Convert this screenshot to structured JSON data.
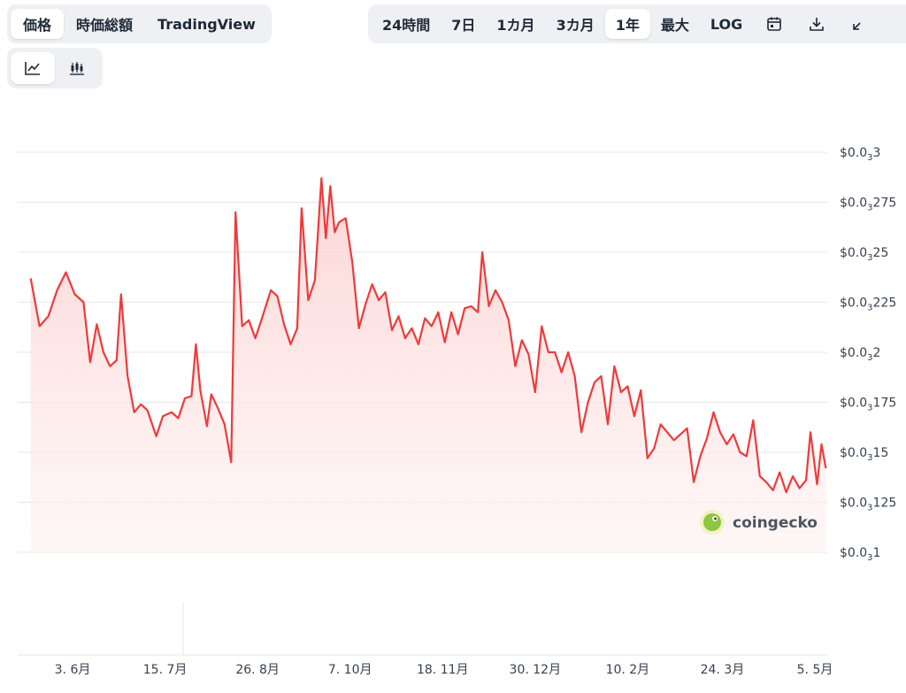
{
  "tabs_left": [
    {
      "label": "価格",
      "active": true
    },
    {
      "label": "時価総額",
      "active": false
    },
    {
      "label": "TradingView",
      "active": false
    }
  ],
  "range_tabs": [
    {
      "label": "24時間",
      "active": false
    },
    {
      "label": "7日",
      "active": false
    },
    {
      "label": "1カ月",
      "active": false
    },
    {
      "label": "3カ月",
      "active": false
    },
    {
      "label": "1年",
      "active": true
    },
    {
      "label": "最大",
      "active": false
    },
    {
      "label": "LOG",
      "active": false
    }
  ],
  "toolbar_icons": [
    "calendar-icon",
    "download-icon",
    "expand-icon"
  ],
  "view_toggle": [
    {
      "icon": "line-chart-icon",
      "active": true
    },
    {
      "icon": "candlestick-icon",
      "active": false
    }
  ],
  "brand": {
    "name": "coingecko",
    "logo": "coingecko-logo-icon"
  },
  "colors": {
    "line": "#ef3a3a",
    "fill_top": "#fcd3d3",
    "grid": "#e5e7eb",
    "text": "#374151"
  },
  "chart_data": {
    "type": "area",
    "title": "",
    "xlabel": "",
    "ylabel": "",
    "ylim": [
      9e-05,
      0.0003
    ],
    "grid": true,
    "y_ticks": [
      {
        "main": "$0.0",
        "sub": "3",
        "tail": "3",
        "value": 0.0003
      },
      {
        "main": "$0.0",
        "sub": "3",
        "tail": "275",
        "value": 0.000275
      },
      {
        "main": "$0.0",
        "sub": "3",
        "tail": "25",
        "value": 0.00025
      },
      {
        "main": "$0.0",
        "sub": "3",
        "tail": "225",
        "value": 0.000225
      },
      {
        "main": "$0.0",
        "sub": "3",
        "tail": "2",
        "value": 0.0002
      },
      {
        "main": "$0.0",
        "sub": "3",
        "tail": "175",
        "value": 0.000175
      },
      {
        "main": "$0.0",
        "sub": "3",
        "tail": "15",
        "value": 0.00015
      },
      {
        "main": "$0.0",
        "sub": "3",
        "tail": "125",
        "value": 0.000125
      },
      {
        "main": "$0.0",
        "sub": "3",
        "tail": "1",
        "value": 0.0001
      }
    ],
    "x_ticks": [
      {
        "label": "3. 6月",
        "date": "2023-06-03"
      },
      {
        "label": "15. 7月",
        "date": "2023-07-15"
      },
      {
        "label": "26. 8月",
        "date": "2023-08-26"
      },
      {
        "label": "7. 10月",
        "date": "2023-10-07"
      },
      {
        "label": "18. 11月",
        "date": "2023-11-18"
      },
      {
        "label": "30. 12月",
        "date": "2023-12-30"
      },
      {
        "label": "10. 2月",
        "date": "2024-02-10"
      },
      {
        "label": "24. 3月",
        "date": "2024-03-24"
      },
      {
        "label": "5. 5月",
        "date": "2024-05-05"
      }
    ],
    "series": [
      {
        "values": [
          [
            "2023-05-15",
            0.000237
          ],
          [
            "2023-05-19",
            0.000213
          ],
          [
            "2023-05-23",
            0.000218
          ],
          [
            "2023-05-27",
            0.000231
          ],
          [
            "2023-05-31",
            0.00024
          ],
          [
            "2023-06-04",
            0.000229
          ],
          [
            "2023-06-08",
            0.000225
          ],
          [
            "2023-06-11",
            0.000195
          ],
          [
            "2023-06-14",
            0.000214
          ],
          [
            "2023-06-17",
            0.0002
          ],
          [
            "2023-06-20",
            0.000193
          ],
          [
            "2023-06-23",
            0.000196
          ],
          [
            "2023-06-25",
            0.000229
          ],
          [
            "2023-06-28",
            0.000188
          ],
          [
            "2023-07-01",
            0.00017
          ],
          [
            "2023-07-04",
            0.000174
          ],
          [
            "2023-07-07",
            0.000171
          ],
          [
            "2023-07-11",
            0.000158
          ],
          [
            "2023-07-14",
            0.000168
          ],
          [
            "2023-07-18",
            0.00017
          ],
          [
            "2023-07-21",
            0.000167
          ],
          [
            "2023-07-24",
            0.000177
          ],
          [
            "2023-07-27",
            0.000178
          ],
          [
            "2023-07-29",
            0.000204
          ],
          [
            "2023-07-31",
            0.000181
          ],
          [
            "2023-08-03",
            0.000163
          ],
          [
            "2023-08-05",
            0.000179
          ],
          [
            "2023-08-08",
            0.000172
          ],
          [
            "2023-08-11",
            0.000164
          ],
          [
            "2023-08-14",
            0.000145
          ],
          [
            "2023-08-16",
            0.00027
          ],
          [
            "2023-08-19",
            0.000213
          ],
          [
            "2023-08-22",
            0.000216
          ],
          [
            "2023-08-25",
            0.000207
          ],
          [
            "2023-08-28",
            0.000217
          ],
          [
            "2023-09-01",
            0.000231
          ],
          [
            "2023-09-04",
            0.000228
          ],
          [
            "2023-09-07",
            0.000214
          ],
          [
            "2023-09-10",
            0.000204
          ],
          [
            "2023-09-13",
            0.000212
          ],
          [
            "2023-09-15",
            0.000272
          ],
          [
            "2023-09-18",
            0.000226
          ],
          [
            "2023-09-21",
            0.000236
          ],
          [
            "2023-09-24",
            0.000287
          ],
          [
            "2023-09-26",
            0.000257
          ],
          [
            "2023-09-28",
            0.000283
          ],
          [
            "2023-09-30",
            0.00026
          ],
          [
            "2023-10-02",
            0.000265
          ],
          [
            "2023-10-05",
            0.000267
          ],
          [
            "2023-10-08",
            0.000245
          ],
          [
            "2023-10-11",
            0.000212
          ],
          [
            "2023-10-14",
            0.000224
          ],
          [
            "2023-10-17",
            0.000234
          ],
          [
            "2023-10-20",
            0.000226
          ],
          [
            "2023-10-23",
            0.00023
          ],
          [
            "2023-10-26",
            0.000211
          ],
          [
            "2023-10-29",
            0.000218
          ],
          [
            "2023-11-01",
            0.000207
          ],
          [
            "2023-11-04",
            0.000212
          ],
          [
            "2023-11-07",
            0.000204
          ],
          [
            "2023-11-10",
            0.000217
          ],
          [
            "2023-11-13",
            0.000213
          ],
          [
            "2023-11-16",
            0.00022
          ],
          [
            "2023-11-19",
            0.000205
          ],
          [
            "2023-11-22",
            0.00022
          ],
          [
            "2023-11-25",
            0.000209
          ],
          [
            "2023-11-28",
            0.000222
          ],
          [
            "2023-12-01",
            0.000223
          ],
          [
            "2023-12-04",
            0.00022
          ],
          [
            "2023-12-06",
            0.00025
          ],
          [
            "2023-12-09",
            0.000223
          ],
          [
            "2023-12-12",
            0.000231
          ],
          [
            "2023-12-15",
            0.000225
          ],
          [
            "2023-12-18",
            0.000216
          ],
          [
            "2023-12-21",
            0.000193
          ],
          [
            "2023-12-24",
            0.000206
          ],
          [
            "2023-12-27",
            0.000199
          ],
          [
            "2023-12-30",
            0.00018
          ],
          [
            "2024-01-02",
            0.000213
          ],
          [
            "2024-01-05",
            0.0002
          ],
          [
            "2024-01-08",
            0.0002
          ],
          [
            "2024-01-11",
            0.00019
          ],
          [
            "2024-01-14",
            0.0002
          ],
          [
            "2024-01-17",
            0.000188
          ],
          [
            "2024-01-20",
            0.00016
          ],
          [
            "2024-01-23",
            0.000175
          ],
          [
            "2024-01-26",
            0.000185
          ],
          [
            "2024-01-29",
            0.000188
          ],
          [
            "2024-02-01",
            0.000164
          ],
          [
            "2024-02-04",
            0.000193
          ],
          [
            "2024-02-07",
            0.00018
          ],
          [
            "2024-02-10",
            0.000183
          ],
          [
            "2024-02-13",
            0.000168
          ],
          [
            "2024-02-16",
            0.000181
          ],
          [
            "2024-02-19",
            0.000147
          ],
          [
            "2024-02-22",
            0.000152
          ],
          [
            "2024-02-25",
            0.000164
          ],
          [
            "2024-02-28",
            0.00016
          ],
          [
            "2024-03-02",
            0.000156
          ],
          [
            "2024-03-05",
            0.000159
          ],
          [
            "2024-03-08",
            0.000162
          ],
          [
            "2024-03-11",
            0.000135
          ],
          [
            "2024-03-14",
            0.000148
          ],
          [
            "2024-03-17",
            0.000157
          ],
          [
            "2024-03-20",
            0.00017
          ],
          [
            "2024-03-23",
            0.00016
          ],
          [
            "2024-03-26",
            0.000154
          ],
          [
            "2024-03-29",
            0.000159
          ],
          [
            "2024-04-01",
            0.00015
          ],
          [
            "2024-04-04",
            0.000148
          ],
          [
            "2024-04-07",
            0.000166
          ],
          [
            "2024-04-10",
            0.000138
          ],
          [
            "2024-04-13",
            0.000135
          ],
          [
            "2024-04-16",
            0.000131
          ],
          [
            "2024-04-19",
            0.00014
          ],
          [
            "2024-04-22",
            0.00013
          ],
          [
            "2024-04-25",
            0.000138
          ],
          [
            "2024-04-28",
            0.000132
          ],
          [
            "2024-05-01",
            0.000136
          ],
          [
            "2024-05-03",
            0.00016
          ],
          [
            "2024-05-06",
            0.000134
          ],
          [
            "2024-05-08",
            0.000154
          ],
          [
            "2024-05-10",
            0.000142
          ]
        ]
      }
    ]
  }
}
